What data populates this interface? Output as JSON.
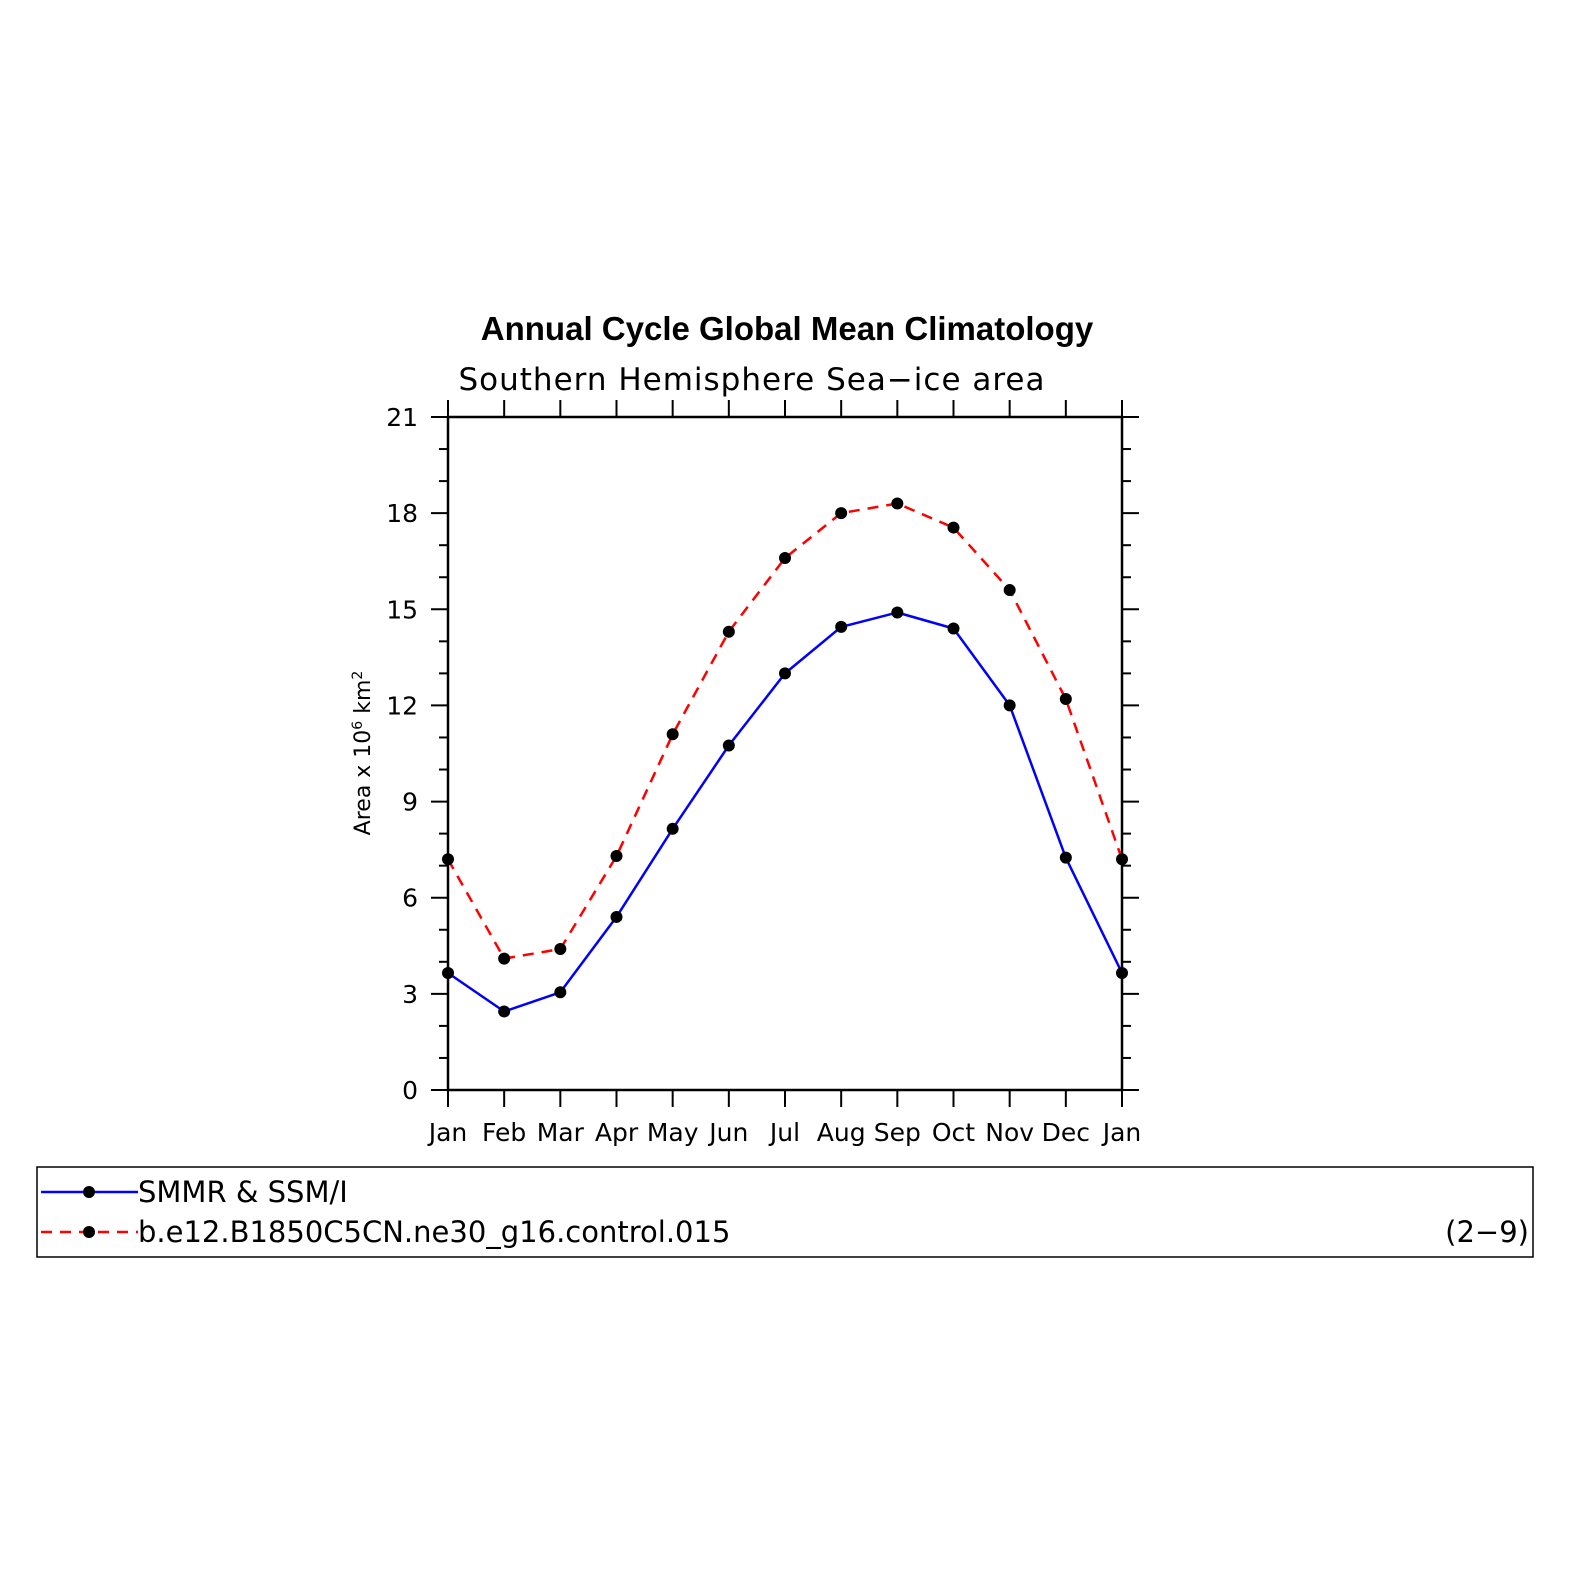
{
  "chart_data": {
    "type": "line",
    "title": "Annual Cycle Global Mean Climatology",
    "subtitle": "Southern Hemisphere Sea−ice area",
    "ylabel_main": "Area x 10",
    "ylabel_sup1": "6",
    "ylabel_unit": " km",
    "ylabel_sup2": "2",
    "ylim": [
      0,
      21
    ],
    "yticks": [
      0,
      3,
      6,
      9,
      12,
      15,
      18,
      21
    ],
    "categories": [
      "Jan",
      "Feb",
      "Mar",
      "Apr",
      "May",
      "Jun",
      "Jul",
      "Aug",
      "Sep",
      "Oct",
      "Nov",
      "Dec",
      "Jan"
    ],
    "series": [
      {
        "name": "SMMR & SSM/I",
        "color": "#0000ff",
        "dash": "solid",
        "values": [
          3.65,
          2.45,
          3.05,
          5.4,
          8.15,
          10.75,
          13.0,
          14.45,
          14.9,
          14.4,
          12.0,
          7.25,
          3.65
        ]
      },
      {
        "name": "b.e12.B1850C5CN.ne30_g16.control.015",
        "color": "#ff0000",
        "dash": "dashed",
        "values": [
          7.2,
          4.1,
          4.4,
          7.3,
          11.1,
          14.3,
          16.6,
          18.0,
          18.3,
          17.55,
          15.6,
          12.2,
          7.2
        ]
      }
    ],
    "legend_placement": "bottom",
    "legend_note": "(2−9)",
    "grid": false
  }
}
